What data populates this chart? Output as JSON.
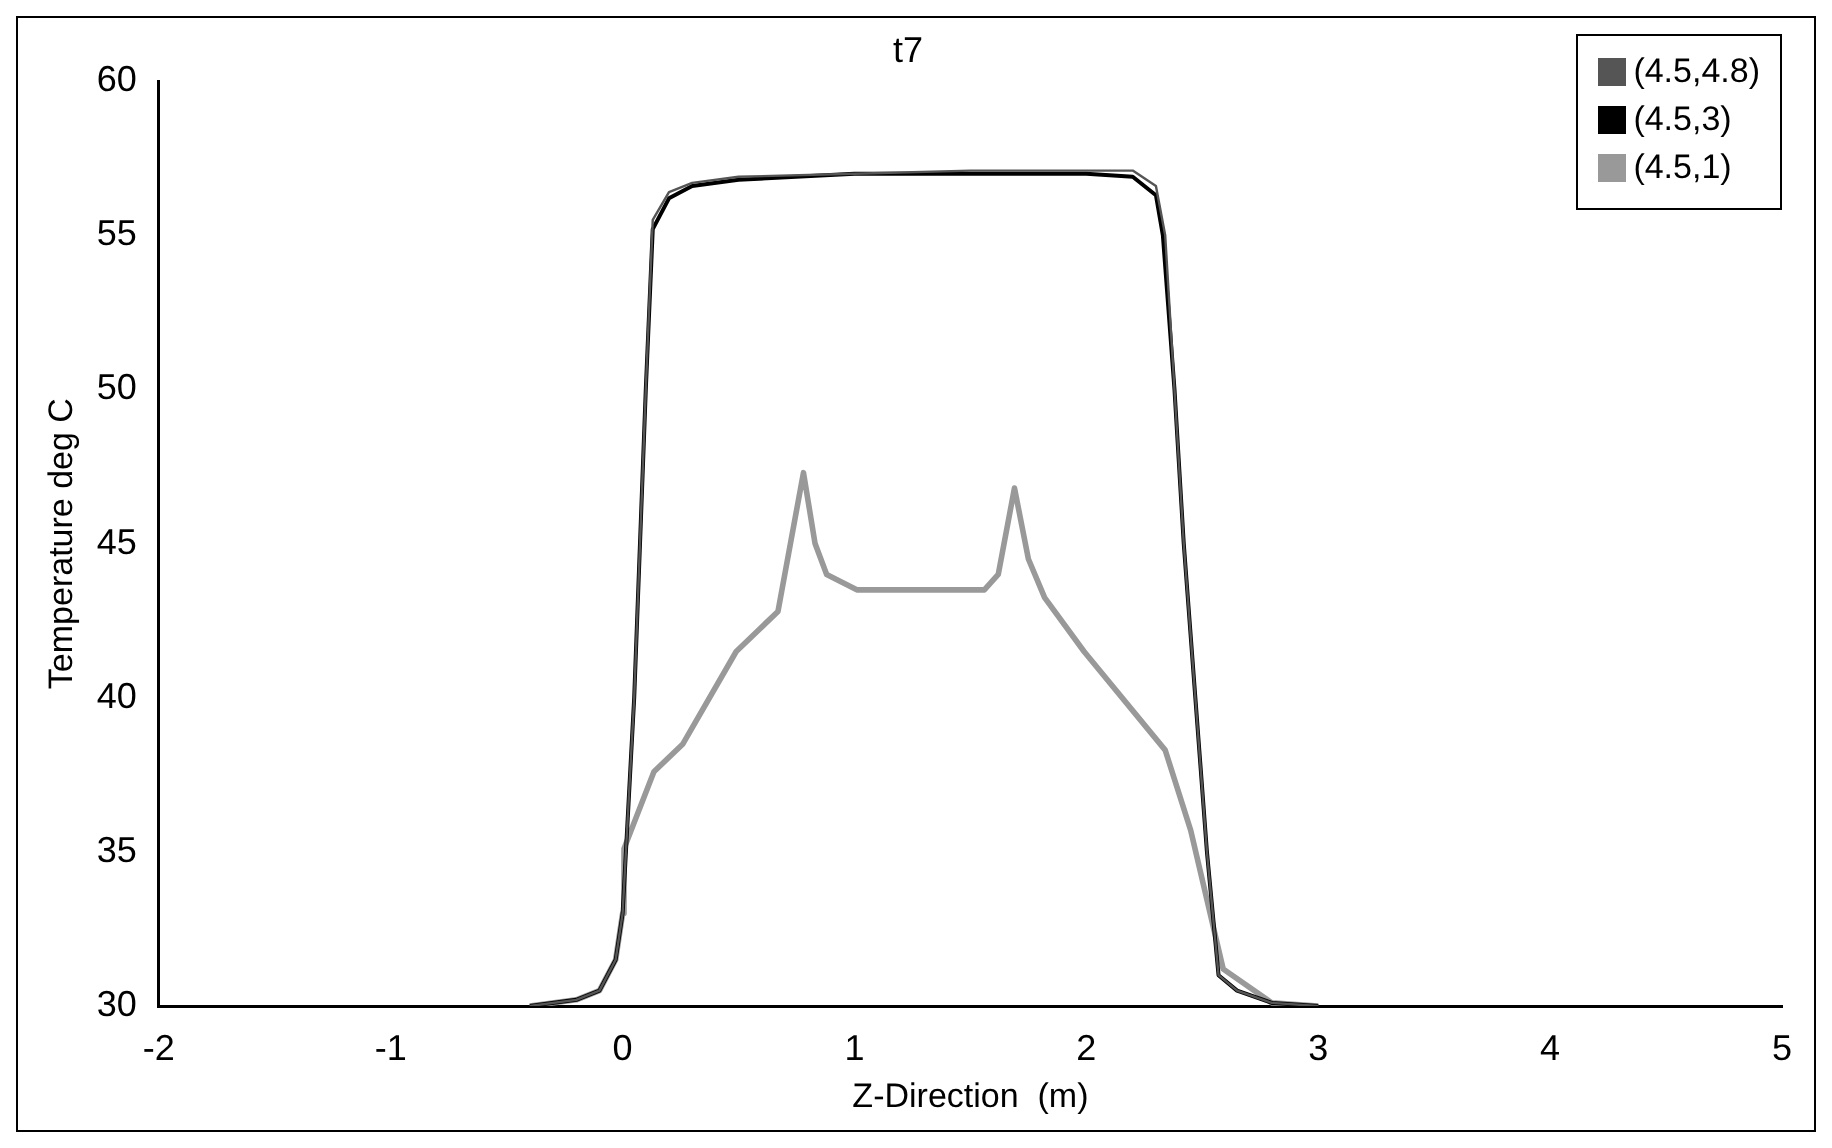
{
  "chart_data": {
    "type": "line",
    "title": "t7",
    "xlabel": "Z-Direction  (m)",
    "ylabel": "Temperature deg C",
    "xlim": [
      -2,
      5
    ],
    "xticks": [
      -2,
      -1,
      0,
      1,
      2,
      3,
      4,
      5
    ],
    "ylim": [
      30,
      60
    ],
    "yticks": [
      30,
      35,
      40,
      45,
      50,
      55,
      60
    ],
    "grid": false,
    "legend": "top right",
    "marker": "none",
    "series": [
      {
        "name": "(4.5,4.8)",
        "color": "#555555",
        "x": [
          -0.4,
          -0.2,
          -0.1,
          -0.03,
          0,
          0.05,
          0.1,
          0.13,
          0.2,
          0.3,
          0.5,
          1.0,
          1.5,
          2.0,
          2.2,
          2.3,
          2.34,
          2.38,
          2.42,
          2.47,
          2.52,
          2.57,
          2.65,
          2.8,
          3.0
        ],
        "values": [
          30,
          30.2,
          30.5,
          31.5,
          33,
          40,
          50,
          55.5,
          56.4,
          56.7,
          56.9,
          57.0,
          57.1,
          57.1,
          57.1,
          56.6,
          55,
          50,
          45,
          40,
          35,
          31,
          30.5,
          30.1,
          30
        ]
      },
      {
        "name": "(4.5,3)",
        "color": "#000000",
        "x": [
          -0.4,
          -0.2,
          -0.1,
          -0.03,
          0,
          0.05,
          0.1,
          0.13,
          0.2,
          0.3,
          0.5,
          1.0,
          1.5,
          2.0,
          2.2,
          2.3,
          2.33,
          2.38,
          2.42,
          2.47,
          2.52,
          2.57,
          2.65,
          2.8,
          3.0
        ],
        "values": [
          30,
          30.2,
          30.5,
          31.5,
          33,
          40,
          50,
          55.2,
          56.2,
          56.6,
          56.8,
          57.0,
          57.0,
          57.0,
          56.9,
          56.3,
          55,
          50,
          45,
          40,
          35,
          31,
          30.5,
          30.1,
          30
        ]
      },
      {
        "name": "(4.5,1)",
        "color": "#999999",
        "x": [
          -0.4,
          -0.2,
          -0.1,
          -0.03,
          0,
          0.006,
          0.135,
          0.26,
          0.49,
          0.67,
          0.78,
          0.83,
          0.88,
          1.01,
          1.56,
          1.62,
          1.69,
          1.75,
          1.82,
          1.99,
          2.34,
          2.45,
          2.59,
          2.8,
          3.0
        ],
        "values": [
          30,
          30.2,
          30.5,
          31.5,
          33,
          35.1,
          37.6,
          38.5,
          41.5,
          42.8,
          47.3,
          45,
          44.0,
          43.5,
          43.5,
          44,
          46.8,
          44.5,
          43.25,
          41.5,
          38.3,
          35.7,
          31.2,
          30.1,
          30
        ]
      }
    ]
  }
}
